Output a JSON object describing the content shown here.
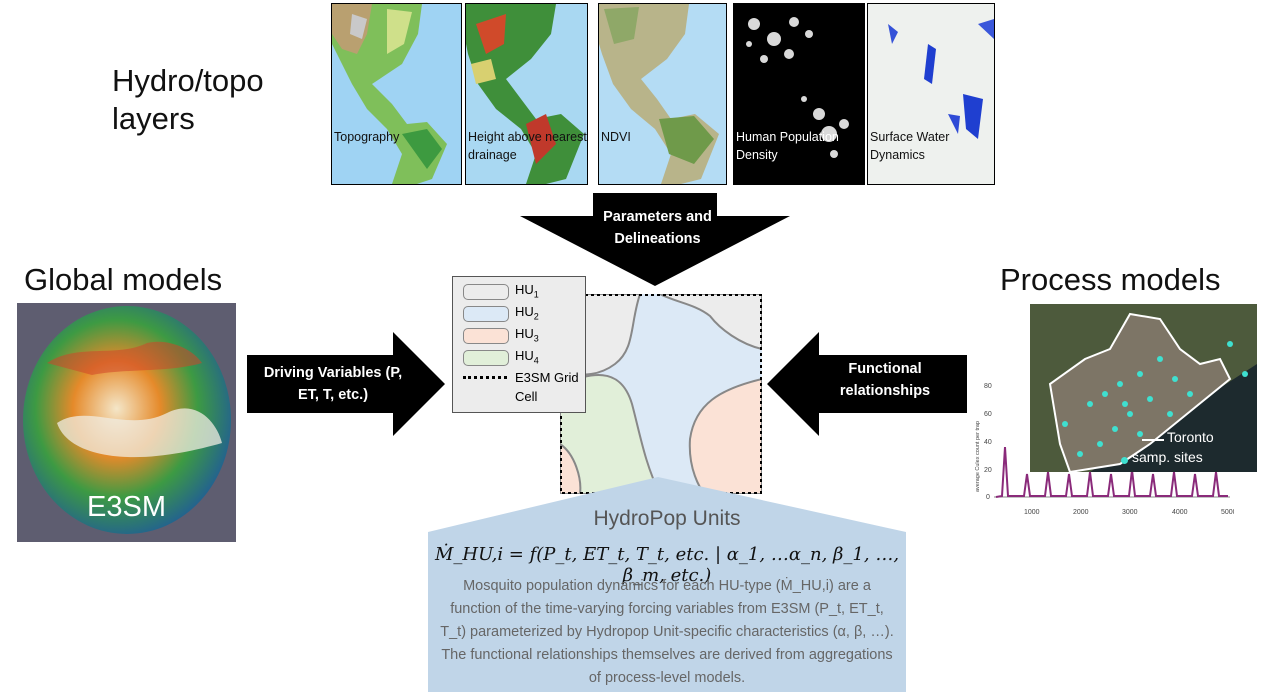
{
  "hydro_title": "Hydro/topo layers",
  "global_title": "Global models",
  "process_title": "Process models",
  "layers": [
    {
      "label": "Topography"
    },
    {
      "label": "Height above nearest drainage"
    },
    {
      "label": "NDVI"
    },
    {
      "label": "Human Population Density"
    },
    {
      "label": "Surface Water Dynamics"
    }
  ],
  "arrow_top": "Parameters and Delineations",
  "arrow_left": "Driving Variables (P, ET, T, etc.)",
  "arrow_right": "Functional relationships",
  "globe_label": "E3SM",
  "legend": {
    "hu1": "HU",
    "hu1_sub": "1",
    "hu2": "HU",
    "hu2_sub": "2",
    "hu3": "HU",
    "hu3_sub": "3",
    "hu4": "HU",
    "hu4_sub": "4",
    "grid_label": "E3SM Grid Cell"
  },
  "hydropop_title": "HydroPop Units",
  "equation": "Ṁ_HU,i = f(P_t, ET_t, T_t, etc. | α_1, …α_n, β_1, …, β_m, etc.)",
  "description": "Mosquito population dynamics for each HU-type (Ṁ_HU,i) are a function of the time-varying forcing variables from E3SM (P_t, ET_t, T_t) parameterized by Hydropop Unit-specific characteristics (α, β, …). The functional relationships themselves are derived from aggregations of process-level models.",
  "map": {
    "legend_line": "Toronto",
    "legend_dot": "samp. sites"
  },
  "chart": {
    "ylabel": "average Culex count per trap",
    "yticks": [
      "80",
      "60",
      "40",
      "20",
      "0"
    ],
    "xticks": [
      "1000",
      "2000",
      "3000",
      "4000",
      "5000"
    ]
  },
  "colors": {
    "hu1": "#ececec",
    "hu2": "#dce9f6",
    "hu3": "#fbe2d6",
    "hu4": "#e1efd9",
    "sites": "#3fe0d0",
    "panel_bg": "#c0d5e8"
  }
}
